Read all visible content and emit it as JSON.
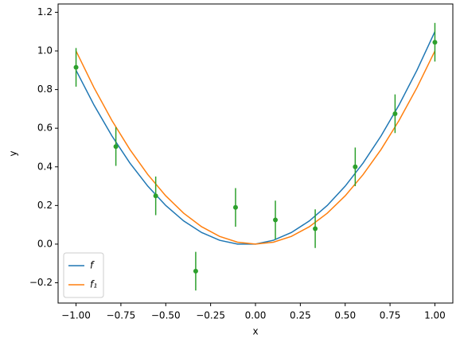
{
  "chart_data": {
    "type": "line",
    "xlabel": "x",
    "ylabel": "y",
    "xlim": [
      -1.1,
      1.1
    ],
    "ylim": [
      -0.305,
      1.243
    ],
    "xticks": [
      {
        "value": -1,
        "label": "−1.00"
      },
      {
        "value": -0.75,
        "label": "−0.75"
      },
      {
        "value": -0.5,
        "label": "−0.50"
      },
      {
        "value": -0.25,
        "label": "−0.25"
      },
      {
        "value": 0,
        "label": "0.00"
      },
      {
        "value": 0.25,
        "label": "0.25"
      },
      {
        "value": 0.5,
        "label": "0.50"
      },
      {
        "value": 0.75,
        "label": "0.75"
      },
      {
        "value": 1,
        "label": "1.00"
      }
    ],
    "yticks": [
      {
        "value": -0.2,
        "label": "−0.2"
      },
      {
        "value": 0,
        "label": "0.0"
      },
      {
        "value": 0.2,
        "label": "0.2"
      },
      {
        "value": 0.4,
        "label": "0.4"
      },
      {
        "value": 0.6,
        "label": "0.6"
      },
      {
        "value": 0.8,
        "label": "0.8"
      },
      {
        "value": 1,
        "label": "1.0"
      },
      {
        "value": 1.2,
        "label": "1.2"
      }
    ],
    "legend": "lower left",
    "series": [
      {
        "name": "f",
        "color": "#1f77b4",
        "kind": "line",
        "x": [
          -1,
          -0.9,
          -0.8,
          -0.7,
          -0.6,
          -0.5,
          -0.4,
          -0.3,
          -0.2,
          -0.1,
          0,
          0.1,
          0.2,
          0.3,
          0.4,
          0.5,
          0.6,
          0.7,
          0.8,
          0.9,
          1
        ],
        "values": [
          0.9,
          0.72,
          0.56,
          0.42,
          0.3,
          0.2,
          0.12,
          0.06,
          0.02,
          0,
          0,
          0.02,
          0.06,
          0.12,
          0.2,
          0.3,
          0.42,
          0.56,
          0.72,
          0.9,
          1.1
        ]
      },
      {
        "name": "f₁",
        "color": "#ff7f0e",
        "kind": "line",
        "x": [
          -1,
          -0.9,
          -0.8,
          -0.7,
          -0.6,
          -0.5,
          -0.4,
          -0.3,
          -0.2,
          -0.1,
          0,
          0.1,
          0.2,
          0.3,
          0.4,
          0.5,
          0.6,
          0.7,
          0.8,
          0.9,
          1
        ],
        "values": [
          1,
          0.81,
          0.64,
          0.49,
          0.36,
          0.25,
          0.16,
          0.09,
          0.04,
          0.01,
          0,
          0.01,
          0.04,
          0.09,
          0.16,
          0.25,
          0.36,
          0.49,
          0.64,
          0.81,
          1
        ]
      },
      {
        "color": "#2ca02c",
        "kind": "errorbar",
        "x": [
          -1,
          -0.778,
          -0.556,
          -0.333,
          -0.111,
          0.111,
          0.333,
          0.556,
          0.778,
          1
        ],
        "values": [
          0.915,
          0.505,
          0.25,
          -0.14,
          0.19,
          0.125,
          0.08,
          0.4,
          0.675,
          1.045
        ],
        "errors": [
          0.1,
          0.1,
          0.1,
          0.1,
          0.1,
          0.1,
          0.1,
          0.1,
          0.1,
          0.1
        ]
      }
    ]
  }
}
